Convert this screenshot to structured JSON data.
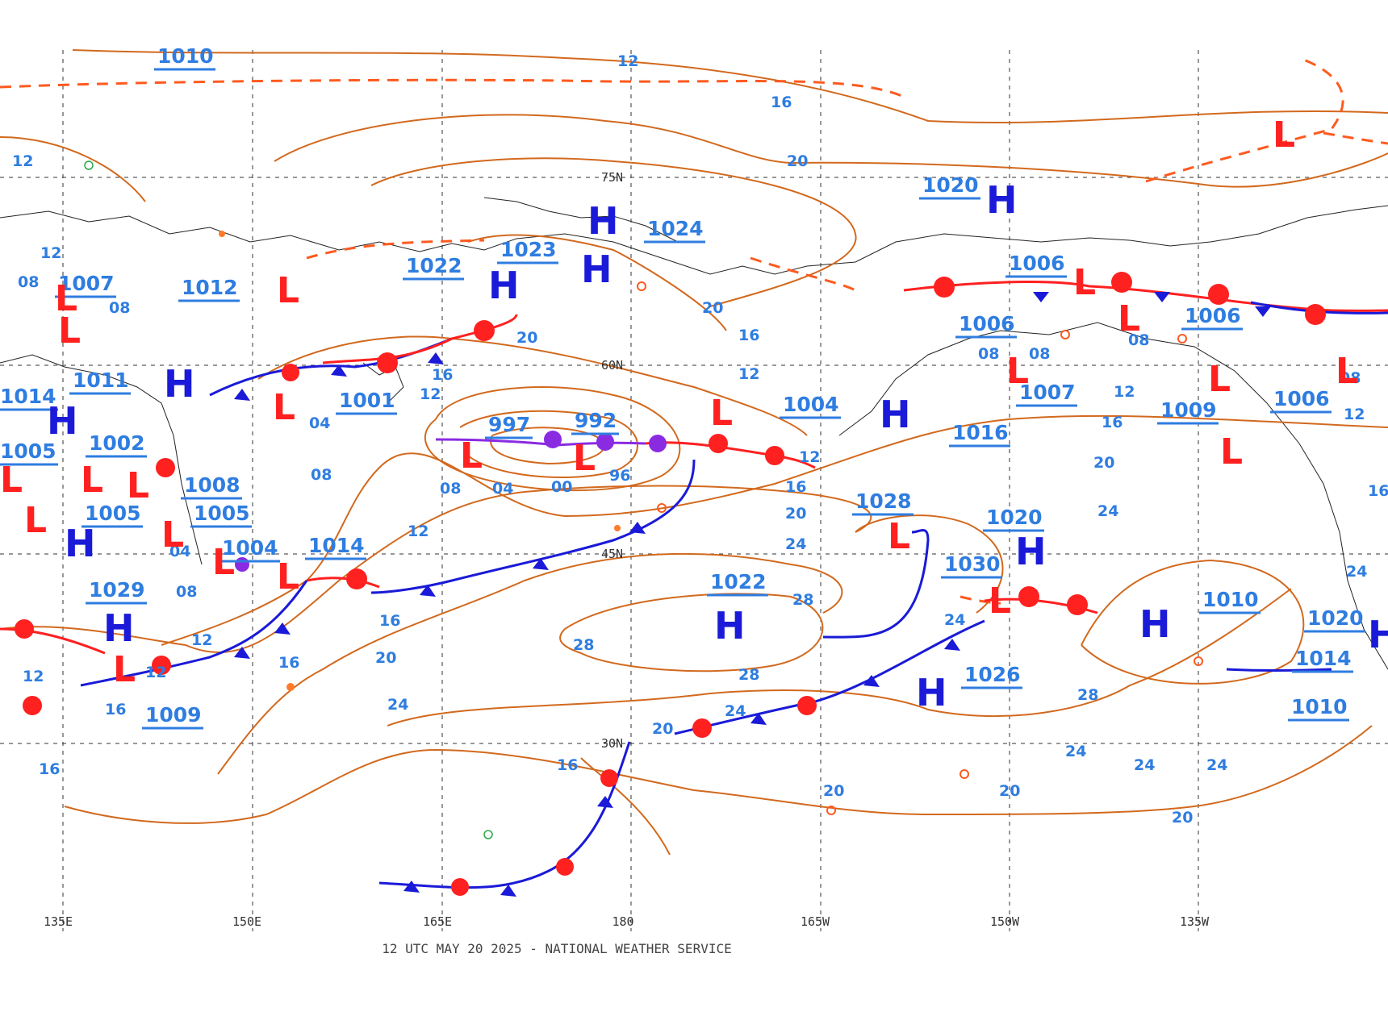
{
  "map": {
    "footer": "12 UTC MAY 20 2025 - NATIONAL WEATHER SERVICE",
    "longitude_labels": [
      "135E",
      "150E",
      "165E",
      "180",
      "165W",
      "150W",
      "135W"
    ],
    "latitude_labels": [
      "75N",
      "60N",
      "45N",
      "30N"
    ],
    "isobar_labels": [
      "12",
      "16",
      "20",
      "24",
      "28",
      "08",
      "04",
      "00",
      "96"
    ],
    "pressure_labels": [
      "1010",
      "1023",
      "1024",
      "1020",
      "1022",
      "1007",
      "1012",
      "1006",
      "1006",
      "1006",
      "1011",
      "1014",
      "1001",
      "997",
      "992",
      "1004",
      "1007",
      "1016",
      "1009",
      "1006",
      "1005",
      "1002",
      "1008",
      "1005",
      "1005",
      "1004",
      "1014",
      "1029",
      "1022",
      "1028",
      "1020",
      "1030",
      "1010",
      "1020",
      "1014",
      "1026",
      "1009",
      "1010"
    ],
    "colors": {
      "isobar": "#d2691e",
      "high": "#1a1ad8",
      "low": "#ff2020",
      "label": "#2f7de0",
      "cold_front": "#1a1ad8",
      "warm_front": "#ff2020",
      "occluded": "#8a2be2"
    }
  }
}
